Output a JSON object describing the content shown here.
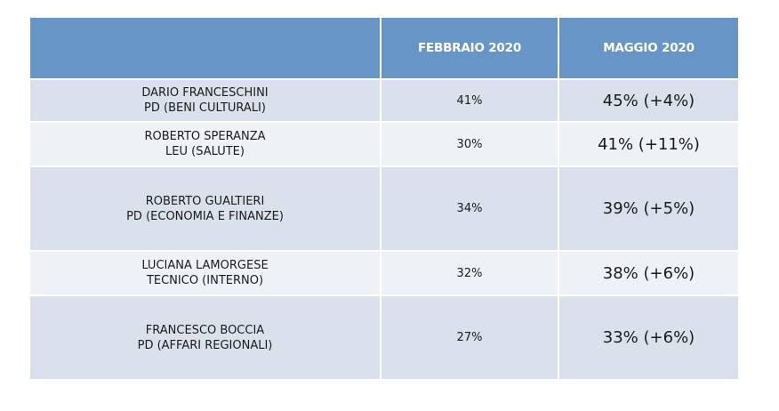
{
  "table": {
    "headers": [
      "",
      "FEBBRAIO 2020",
      "MAGGIO 2020"
    ],
    "rows": [
      {
        "name": "DARIO FRANCESCHINI",
        "role": "PD (BENI CULTURALI)",
        "feb": "41%",
        "may": "45% (+4%)"
      },
      {
        "name": "ROBERTO SPERANZA",
        "role": "LEU (SALUTE)",
        "feb": "30%",
        "may": "41% (+11%)"
      },
      {
        "name": "ROBERTO GUALTIERI",
        "role": "PD (ECONOMIA E FINANZE)",
        "feb": "34%",
        "may": "39% (+5%)"
      },
      {
        "name": "LUCIANA LAMORGESE",
        "role": "TECNICO (INTERNO)",
        "feb": "32%",
        "may": "38% (+6%)"
      },
      {
        "name": "FRANCESCO BOCCIA",
        "role": "PD (AFFARI REGIONALI)",
        "feb": "27%",
        "may": "33% (+6%)"
      }
    ]
  },
  "colors": {
    "header_bg": "#6796c6",
    "row_odd_bg": "#dae0ec",
    "row_even_bg": "#eef1f6"
  }
}
